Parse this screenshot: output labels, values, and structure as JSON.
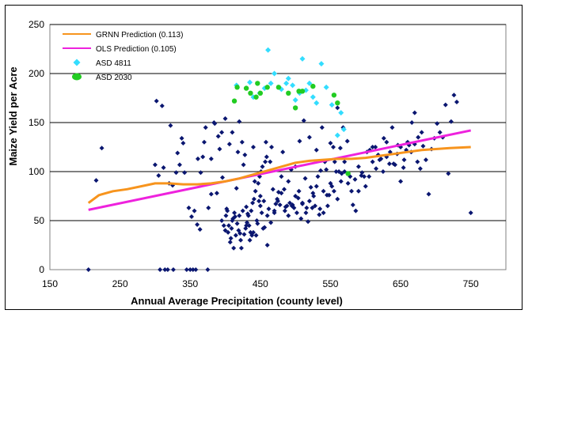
{
  "chart_data": {
    "type": "scatter",
    "title": "",
    "xlabel": "Annual Average Precipitation (county level)",
    "ylabel": "Maize Yield per Acre",
    "xlim": [
      150,
      800
    ],
    "ylim": [
      0,
      250
    ],
    "xticks": [
      150,
      250,
      350,
      450,
      550,
      650,
      750
    ],
    "yticks": [
      0,
      50,
      100,
      150,
      200,
      250
    ],
    "grid": "horizontal",
    "legend_position": "top-left",
    "series": [
      {
        "name": "GRNN Prediction (0.113)",
        "kind": "line",
        "color": "#f7941d",
        "x": [
          205,
          220,
          240,
          260,
          280,
          300,
          320,
          340,
          360,
          380,
          400,
          420,
          440,
          460,
          480,
          500,
          520,
          540,
          560,
          580,
          600,
          620,
          640,
          660,
          680,
          700,
          720,
          750
        ],
        "y": [
          68,
          76,
          80,
          82,
          85,
          88,
          88,
          87,
          87,
          88,
          90,
          93,
          97,
          101,
          105,
          109,
          111,
          112,
          113,
          113,
          114,
          116,
          118,
          120,
          122,
          123,
          124,
          125
        ]
      },
      {
        "name": "OLS Prediction (0.105)",
        "kind": "line",
        "color": "#ee22dd",
        "x": [
          205,
          750
        ],
        "y": [
          61,
          142
        ]
      },
      {
        "name": "ASD 4811",
        "kind": "scatter",
        "marker": "diamond",
        "color": "#33ddff",
        "x": [
          416,
          435,
          440,
          449,
          456,
          461,
          465,
          470,
          480,
          487,
          490,
          496,
          500,
          506,
          510,
          515,
          520,
          525,
          530,
          537,
          544,
          552,
          560,
          565,
          569
        ],
        "y": [
          188,
          191,
          176,
          180,
          185,
          224,
          190,
          200,
          184,
          190,
          195,
          188,
          173,
          180,
          215,
          183,
          190,
          176,
          170,
          210,
          186,
          168,
          137,
          160,
          143
        ]
      },
      {
        "name": "ASD 2030",
        "kind": "scatter",
        "marker": "circle",
        "color": "#22cc22",
        "x": [
          413,
          417,
          430,
          436,
          444,
          446,
          450,
          460,
          476,
          490,
          500,
          505,
          510,
          525,
          555,
          560,
          575
        ],
        "y": [
          172,
          186,
          185,
          180,
          176,
          190,
          180,
          186,
          186,
          180,
          165,
          182,
          182,
          187,
          178,
          170,
          98
        ]
      },
      {
        "kind": "scatter",
        "marker": "diamond",
        "color": "#0a1670",
        "x": [
          205,
          216,
          224,
          302,
          307,
          310,
          314,
          318,
          322,
          326,
          330,
          335,
          340,
          345,
          350,
          354,
          358,
          361,
          365,
          370,
          375,
          380,
          385,
          390,
          395,
          300,
          305,
          312,
          320,
          325,
          332,
          338,
          342,
          348,
          352,
          356,
          360,
          364,
          368,
          372,
          376,
          380,
          384,
          388,
          392,
          396,
          400,
          402,
          404,
          406,
          408,
          410,
          412,
          414,
          416,
          418,
          420,
          422,
          424,
          426,
          428,
          430,
          432,
          434,
          436,
          438,
          440,
          442,
          444,
          446,
          448,
          450,
          452,
          454,
          456,
          458,
          460,
          462,
          464,
          466,
          468,
          470,
          472,
          474,
          476,
          478,
          480,
          482,
          484,
          486,
          488,
          490,
          492,
          494,
          496,
          498,
          500,
          502,
          504,
          506,
          508,
          510,
          512,
          514,
          516,
          518,
          520,
          522,
          524,
          526,
          528,
          530,
          532,
          534,
          536,
          538,
          540,
          542,
          544,
          546,
          548,
          550,
          552,
          554,
          556,
          558,
          560,
          562,
          564,
          566,
          568,
          570,
          574,
          578,
          582,
          586,
          590,
          594,
          598,
          602,
          606,
          610,
          614,
          618,
          622,
          626,
          630,
          634,
          638,
          642,
          646,
          650,
          654,
          658,
          662,
          666,
          670,
          674,
          678,
          682,
          686,
          690,
          694,
          698,
          702,
          706,
          710,
          714,
          718,
          722,
          726,
          730,
          750,
          400,
          405,
          410,
          415,
          420,
          425,
          430,
          435,
          440,
          445,
          450,
          455,
          460,
          465,
          470,
          475,
          480,
          485,
          490,
          495,
          500,
          505,
          510,
          515,
          520,
          525,
          530,
          535,
          540,
          545,
          550,
          555,
          560,
          565,
          570,
          575,
          580,
          585,
          590,
          595,
          600,
          605,
          610,
          615,
          620,
          625,
          630,
          635,
          640,
          645,
          650,
          655,
          660,
          665,
          670,
          675,
          680,
          395,
          398,
          401,
          403,
          407,
          409,
          411,
          413,
          417,
          419,
          421,
          423,
          427,
          429,
          431,
          433,
          437,
          439,
          441,
          443,
          447,
          449,
          451,
          453,
          457,
          459
        ],
        "y": [
          0,
          91,
          124,
          172,
          0,
          167,
          0,
          0,
          147,
          0,
          99,
          107,
          129,
          0,
          0,
          0,
          0,
          113,
          99,
          130,
          0,
          113,
          149,
          136,
          140,
          107,
          96,
          104,
          88,
          86,
          119,
          134,
          99,
          63,
          54,
          60,
          46,
          41,
          115,
          145,
          63,
          77,
          150,
          78,
          123,
          94,
          154,
          62,
          38,
          128,
          32,
          140,
          22,
          54,
          83,
          120,
          151,
          30,
          130,
          107,
          117,
          64,
          57,
          45,
          38,
          35,
          125,
          90,
          35,
          47,
          70,
          75,
          58,
          42,
          43,
          130,
          25,
          62,
          110,
          125,
          82,
          58,
          67,
          72,
          79,
          66,
          95,
          120,
          82,
          64,
          65,
          90,
          68,
          102,
          66,
          63,
          105,
          58,
          73,
          131,
          52,
          67,
          152,
          93,
          63,
          49,
          135,
          84,
          63,
          75,
          65,
          122,
          95,
          56,
          101,
          145,
          80,
          110,
          102,
          65,
          76,
          129,
          85,
          125,
          110,
          100,
          165,
          100,
          124,
          98,
          145,
          110,
          131,
          95,
          66,
          60,
          80,
          96,
          95,
          120,
          122,
          125,
          125,
          117,
          113,
          134,
          130,
          108,
          145,
          107,
          127,
          90,
          104,
          122,
          127,
          150,
          160,
          110,
          103,
          126,
          112,
          77,
          123,
          134,
          149,
          140,
          135,
          168,
          98,
          151,
          178,
          171,
          58,
          40,
          45,
          50,
          35,
          55,
          60,
          45,
          30,
          38,
          50,
          65,
          70,
          55,
          48,
          60,
          70,
          78,
          60,
          55,
          65,
          75,
          80,
          68,
          58,
          70,
          78,
          85,
          62,
          58,
          76,
          88,
          80,
          72,
          90,
          100,
          88,
          80,
          92,
          105,
          99,
          85,
          95,
          110,
          103,
          112,
          100,
          115,
          120,
          108,
          118,
          125,
          112,
          130,
          120,
          128,
          135,
          140,
          50,
          45,
          55,
          60,
          28,
          42,
          52,
          58,
          47,
          40,
          37,
          22,
          36,
          42,
          48,
          55,
          60,
          68,
          72,
          80,
          88,
          95,
          100,
          105,
          110,
          115
        ]
      }
    ]
  }
}
